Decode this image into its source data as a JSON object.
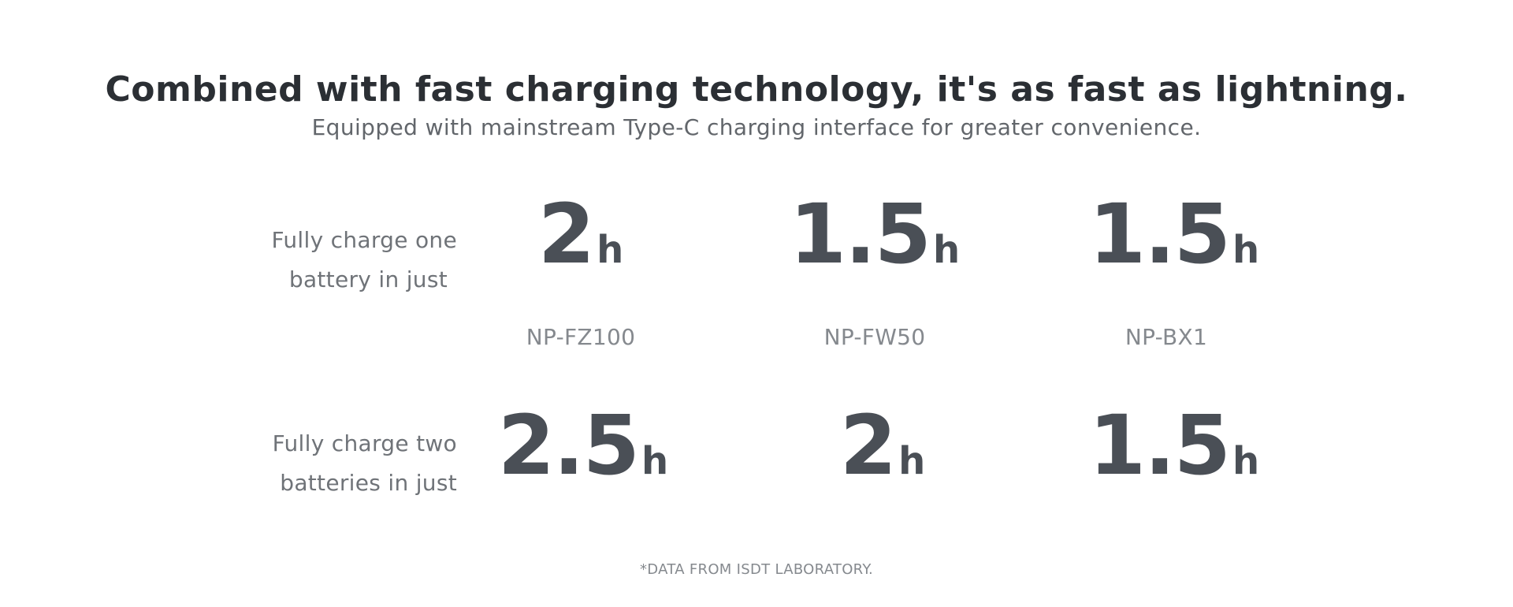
{
  "headline": "Combined with fast charging technology, it's as fast as lightning.",
  "subheadline": "Equipped with mainstream Type-C charging interface for greater convenience.",
  "rows": [
    {
      "label_line1": "Fully charge one",
      "label_line2": "battery in just",
      "times": [
        {
          "value": "2",
          "unit": "h"
        },
        {
          "value": "1.5",
          "unit": "h"
        },
        {
          "value": "1.5",
          "unit": "h"
        }
      ]
    },
    {
      "label_line1": "Fully charge two",
      "label_line2": "batteries in just",
      "times": [
        {
          "value": "2.5",
          "unit": "h"
        },
        {
          "value": "2",
          "unit": "h"
        },
        {
          "value": "1.5",
          "unit": "h"
        }
      ]
    }
  ],
  "models": [
    "NP-FZ100",
    "NP-FW50",
    "NP-BX1"
  ],
  "note": "*DATA FROM ISDT LABORATORY.",
  "colors": {
    "headline": "#2b2f34",
    "value": "#4a4f56",
    "label": "#6f7378",
    "model": "#85898e"
  }
}
